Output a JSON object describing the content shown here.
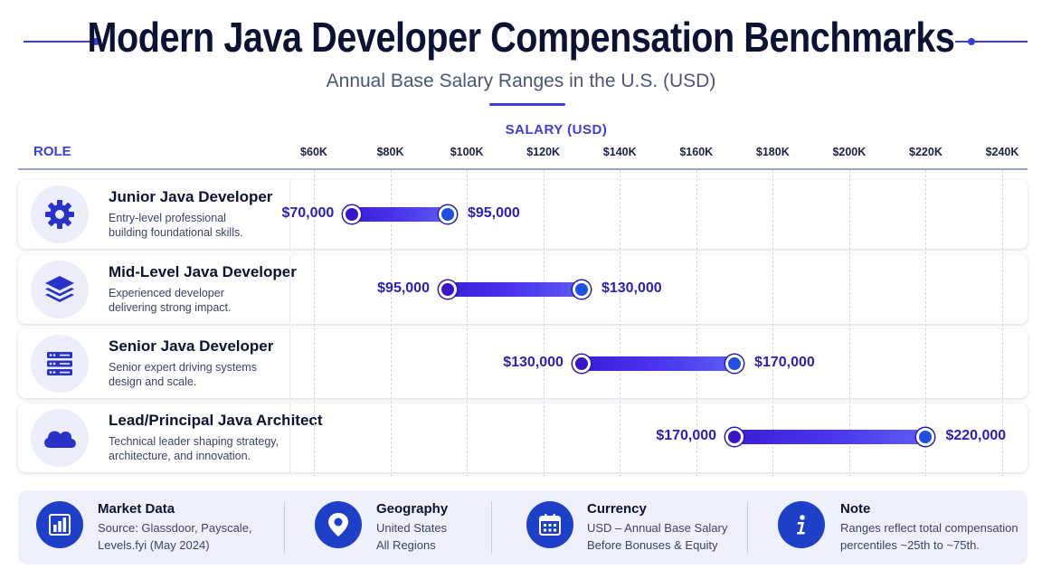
{
  "header": {
    "title": "Modern Java Developer Compensation Benchmarks",
    "subtitle": "Annual Base Salary Ranges in the U.S. (USD)"
  },
  "colors": {
    "accent": "#3b3fd8",
    "bar_start": "#3a1fd8",
    "bar_end": "#5b5cf2",
    "footer_icon": "#1e3fc7"
  },
  "chart_data": {
    "type": "bar",
    "orientation": "horizontal-range",
    "title": "Modern Java Developer Compensation Benchmarks",
    "subtitle": "Annual Base Salary Ranges in the U.S. (USD)",
    "xlabel": "SALARY (USD)",
    "ylabel": "ROLE",
    "xlim": [
      60000,
      240000
    ],
    "x_ticks": [
      60000,
      80000,
      100000,
      120000,
      140000,
      160000,
      180000,
      200000,
      220000,
      240000
    ],
    "x_tick_labels": [
      "$60K",
      "$80K",
      "$100K",
      "$120K",
      "$140K",
      "$160K",
      "$180K",
      "$200K",
      "$220K",
      "$240K"
    ],
    "grid": true,
    "categories": [
      "Junior Java Developer",
      "Mid-Level Java Developer",
      "Senior Java Developer",
      "Lead/Principal Java Architect"
    ],
    "ranges": [
      {
        "role": "Junior Java Developer",
        "low": 70000,
        "high": 95000,
        "low_label": "$70,000",
        "high_label": "$95,000"
      },
      {
        "role": "Mid-Level Java Developer",
        "low": 95000,
        "high": 130000,
        "low_label": "$95,000",
        "high_label": "$130,000"
      },
      {
        "role": "Senior Java Developer",
        "low": 130000,
        "high": 170000,
        "low_label": "$130,000",
        "high_label": "$170,000"
      },
      {
        "role": "Lead/Principal Java Architect",
        "low": 170000,
        "high": 220000,
        "low_label": "$170,000",
        "high_label": "$220,000"
      }
    ]
  },
  "rows": [
    {
      "name": "Junior Java Developer",
      "desc_1": "Entry-level professional",
      "desc_2": "building foundational skills.",
      "icon": "gear-icon"
    },
    {
      "name": "Mid-Level Java Developer",
      "desc_1": "Experienced developer",
      "desc_2": "delivering strong impact.",
      "icon": "layers-icon"
    },
    {
      "name": "Senior Java Developer",
      "desc_1": "Senior expert driving systems",
      "desc_2": "design and scale.",
      "icon": "server-icon"
    },
    {
      "name": "Lead/Principal Java Architect",
      "desc_1": "Technical leader shaping strategy,",
      "desc_2": "architecture, and innovation.",
      "icon": "cloud-icon"
    }
  ],
  "footer": [
    {
      "title": "Market Data",
      "line_1": "Source: Glassdoor, Payscale,",
      "line_2": "Levels.fyi (May 2024)",
      "icon": "bar-chart-icon"
    },
    {
      "title": "Geography",
      "line_1": "United States",
      "line_2": "All Regions",
      "icon": "location-pin-icon"
    },
    {
      "title": "Currency",
      "line_1": "USD – Annual Base Salary",
      "line_2": "Before Bonuses & Equity",
      "icon": "calendar-icon"
    },
    {
      "title": "Note",
      "line_1": "Ranges reflect total compensation",
      "line_2": "percentiles ~25th to ~75th.",
      "icon": "info-icon"
    }
  ]
}
